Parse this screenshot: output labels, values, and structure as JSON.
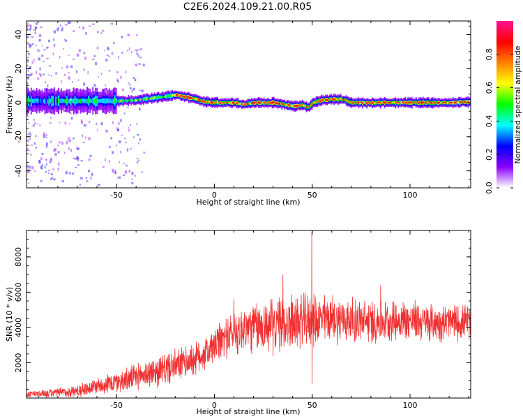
{
  "title": "C2E6.2024.109.21.00.R05",
  "chart_data": [
    {
      "type": "heatmap",
      "xlabel": "Height of straight line (km)",
      "ylabel": "Frequency (Hz)",
      "xlim": [
        -96,
        131
      ],
      "ylim": [
        -50,
        48
      ],
      "x_ticks": [
        -50,
        0,
        50,
        100
      ],
      "y_ticks": [
        -40,
        -20,
        0,
        20,
        40
      ],
      "x_tick_labels": [
        "-50",
        "0",
        "50",
        "100"
      ],
      "y_tick_labels": [
        "-40",
        "-20",
        "0",
        "20",
        "40"
      ],
      "colorbar": {
        "label": "Normalized spectral amplitude",
        "range": [
          0,
          1
        ],
        "ticks": [
          0.0,
          0.2,
          0.4,
          0.6,
          0.8
        ],
        "tick_labels": [
          "0.0",
          "0.2",
          "0.4",
          "0.6",
          "0.8"
        ],
        "colormap": [
          "#ffffff",
          "#8b00ff",
          "#0000ff",
          "#00ffff",
          "#00ff00",
          "#ffff00",
          "#ff8000",
          "#ff0000",
          "#ff1493"
        ]
      },
      "ridge": {
        "x": [
          -96,
          -80,
          -70,
          -60,
          -50,
          -40,
          -30,
          -20,
          -15,
          -10,
          -5,
          0,
          5,
          10,
          15,
          20,
          25,
          30,
          35,
          40,
          45,
          48,
          50,
          55,
          60,
          65,
          70,
          75,
          80,
          90,
          100,
          110,
          120,
          131
        ],
        "y": [
          1,
          1,
          1,
          1,
          1,
          1.5,
          3,
          4.5,
          3.5,
          2,
          0.5,
          0,
          0,
          0,
          -1,
          0,
          0,
          0,
          -1,
          -2,
          -1.5,
          -3,
          0,
          1.5,
          2,
          2,
          0,
          0,
          0,
          0,
          0,
          0,
          0,
          0.5
        ]
      }
    },
    {
      "type": "line",
      "xlabel": "Height of straight line (km)",
      "ylabel": "SNR (10 * v/v)",
      "xlim": [
        -96,
        131
      ],
      "ylim": [
        0,
        9500
      ],
      "x_ticks": [
        -50,
        0,
        50,
        100
      ],
      "y_ticks": [
        2000,
        4000,
        6000,
        8000
      ],
      "x_tick_labels": [
        "-50",
        "0",
        "50",
        "100"
      ],
      "y_tick_labels": [
        "2000",
        "4000",
        "6000",
        "8000"
      ],
      "color": "#f03030",
      "envelope": {
        "x": [
          -96,
          -80,
          -70,
          -60,
          -50,
          -40,
          -30,
          -20,
          -10,
          0,
          5,
          10,
          15,
          20,
          30,
          40,
          50,
          60,
          70,
          80,
          90,
          100,
          110,
          120,
          131
        ],
        "mean": [
          200,
          300,
          400,
          700,
          900,
          1200,
          1500,
          1800,
          2200,
          2900,
          3400,
          3700,
          3900,
          4000,
          4100,
          4300,
          4400,
          4500,
          4400,
          4300,
          4400,
          4400,
          4300,
          4300,
          4300
        ],
        "amplitude": [
          200,
          250,
          350,
          450,
          600,
          700,
          800,
          900,
          900,
          1000,
          1100,
          1200,
          1300,
          1400,
          1500,
          1500,
          1400,
          1300,
          1200,
          1200,
          1100,
          1100,
          1000,
          1000,
          900
        ]
      },
      "spikes": [
        {
          "x": 49.8,
          "y": 9400
        },
        {
          "x": 49.9,
          "y": 800
        },
        {
          "x": 35,
          "y": 7000
        },
        {
          "x": 10,
          "y": 5600
        },
        {
          "x": 85,
          "y": 6400
        }
      ]
    }
  ]
}
